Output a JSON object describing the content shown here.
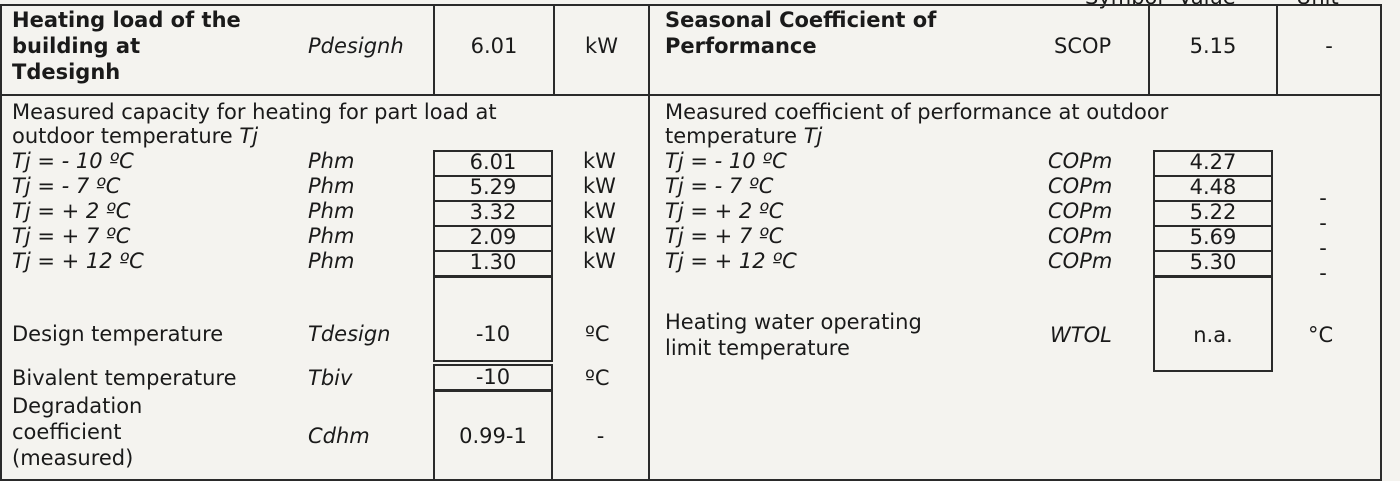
{
  "top_labels": {
    "symbol": "Symbol",
    "value": "Value",
    "unit": "Unit"
  },
  "left": {
    "design_load": {
      "label": [
        "Heating load of the",
        "building at",
        "Tdesignh"
      ],
      "symbol": "Pdesignh",
      "value": "6.01",
      "unit": "kW"
    },
    "capacity_heading": [
      "Measured capacity for heating for part load at",
      "outdoor temperature"
    ],
    "capacity_heading_tj": "Tj",
    "capacity_rows": [
      {
        "tj": "Tj = - 10 ºC",
        "symbol": "Phm",
        "value": "6.01",
        "unit": "kW"
      },
      {
        "tj": "Tj = - 7 ºC",
        "symbol": "Phm",
        "value": "5.29",
        "unit": "kW"
      },
      {
        "tj": "Tj = + 2 ºC",
        "symbol": "Phm",
        "value": "3.32",
        "unit": "kW"
      },
      {
        "tj": "Tj = + 7 ºC",
        "symbol": "Phm",
        "value": "2.09",
        "unit": "kW"
      },
      {
        "tj": "Tj = + 12 ºC",
        "symbol": "Phm",
        "value": "1.30",
        "unit": "kW"
      }
    ],
    "design_temperature": {
      "label": "Design temperature",
      "symbol": "Tdesign",
      "value": "-10",
      "unit": "ºC"
    },
    "bivalent_temperature": {
      "label": "Bivalent temperature",
      "symbol": "Tbiv",
      "value": "-10",
      "unit": "ºC"
    },
    "degradation": {
      "label": [
        "Degradation",
        "coefficient",
        "(measured)"
      ],
      "symbol": "Cdhm",
      "value": "0.99-1",
      "unit": "-"
    }
  },
  "right": {
    "scop": {
      "label": [
        "Seasonal  Coefficient of",
        "Performance"
      ],
      "symbol": "SCOP",
      "value": "5.15",
      "unit": "-"
    },
    "cop_heading": [
      "Measured coefficient of performance at outdoor",
      "temperature"
    ],
    "cop_heading_tj": "Tj",
    "cop_rows": [
      {
        "tj": "Tj = - 10 ºC",
        "symbol": "COPm",
        "value": "4.27",
        "unit": ""
      },
      {
        "tj": "Tj = - 7 ºC",
        "symbol": "COPm",
        "value": "4.48",
        "unit": "-"
      },
      {
        "tj": "Tj = + 2 ºC",
        "symbol": "COPm",
        "value": "5.22",
        "unit": "-"
      },
      {
        "tj": "Tj = + 7 ºC",
        "symbol": "COPm",
        "value": "5.69",
        "unit": "-"
      },
      {
        "tj": "Tj = + 12 ºC",
        "symbol": "COPm",
        "value": "5.30",
        "unit": "-"
      }
    ],
    "wtol": {
      "label": [
        "Heating water operating",
        "limit temperature"
      ],
      "symbol": "WTOL",
      "value": "n.a.",
      "unit": "°C"
    }
  }
}
